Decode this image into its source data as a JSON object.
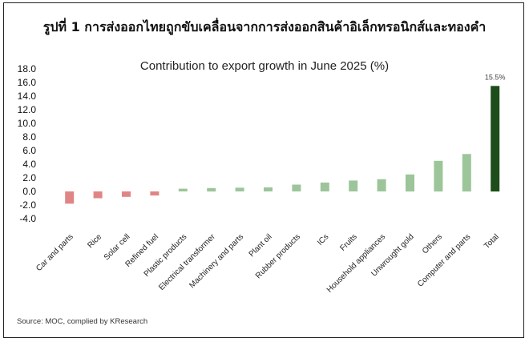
{
  "figure": {
    "title": "รูปที่ 1 การส่งออกไทยถูกขับเคลื่อนจากการส่งออกสินค้าอิเล็กทรอนิกส์และทองคำ",
    "source": "Source: MOC, complied by KResearch"
  },
  "chart_data": {
    "type": "bar",
    "title": "Contribution to export growth in June 2025 (%)",
    "xlabel": "",
    "ylabel": "",
    "ylim": [
      -4.0,
      18.0
    ],
    "yticks": [
      "18.0",
      "16.0",
      "14.0",
      "12.0",
      "10.0",
      "8.0",
      "6.0",
      "4.0",
      "2.0",
      "0.0",
      "-2.0",
      "-4.0"
    ],
    "categories": [
      "Car and parts",
      "Rice",
      "Solar cell",
      "Refined fuel",
      "Plastic products",
      "Electrical transformer",
      "Machinery and parts",
      "Plant oil",
      "Rubber products",
      "ICs",
      "Fruits",
      "Household appliances",
      "Unwrought gold",
      "Others",
      "Computer and parts",
      "Total"
    ],
    "values": [
      -1.8,
      -1.0,
      -0.8,
      -0.6,
      0.4,
      0.5,
      0.55,
      0.6,
      1.0,
      1.3,
      1.6,
      1.8,
      2.5,
      4.5,
      5.5,
      15.5
    ],
    "data_labels": [
      "",
      "",
      "",
      "",
      "",
      "",
      "",
      "",
      "",
      "",
      "",
      "",
      "",
      "",
      "",
      "15.5%"
    ],
    "colors": {
      "negative": "#e08585",
      "positive": "#9cc59a",
      "total": "#1d4d1a"
    },
    "grid": false,
    "legend": "none"
  }
}
